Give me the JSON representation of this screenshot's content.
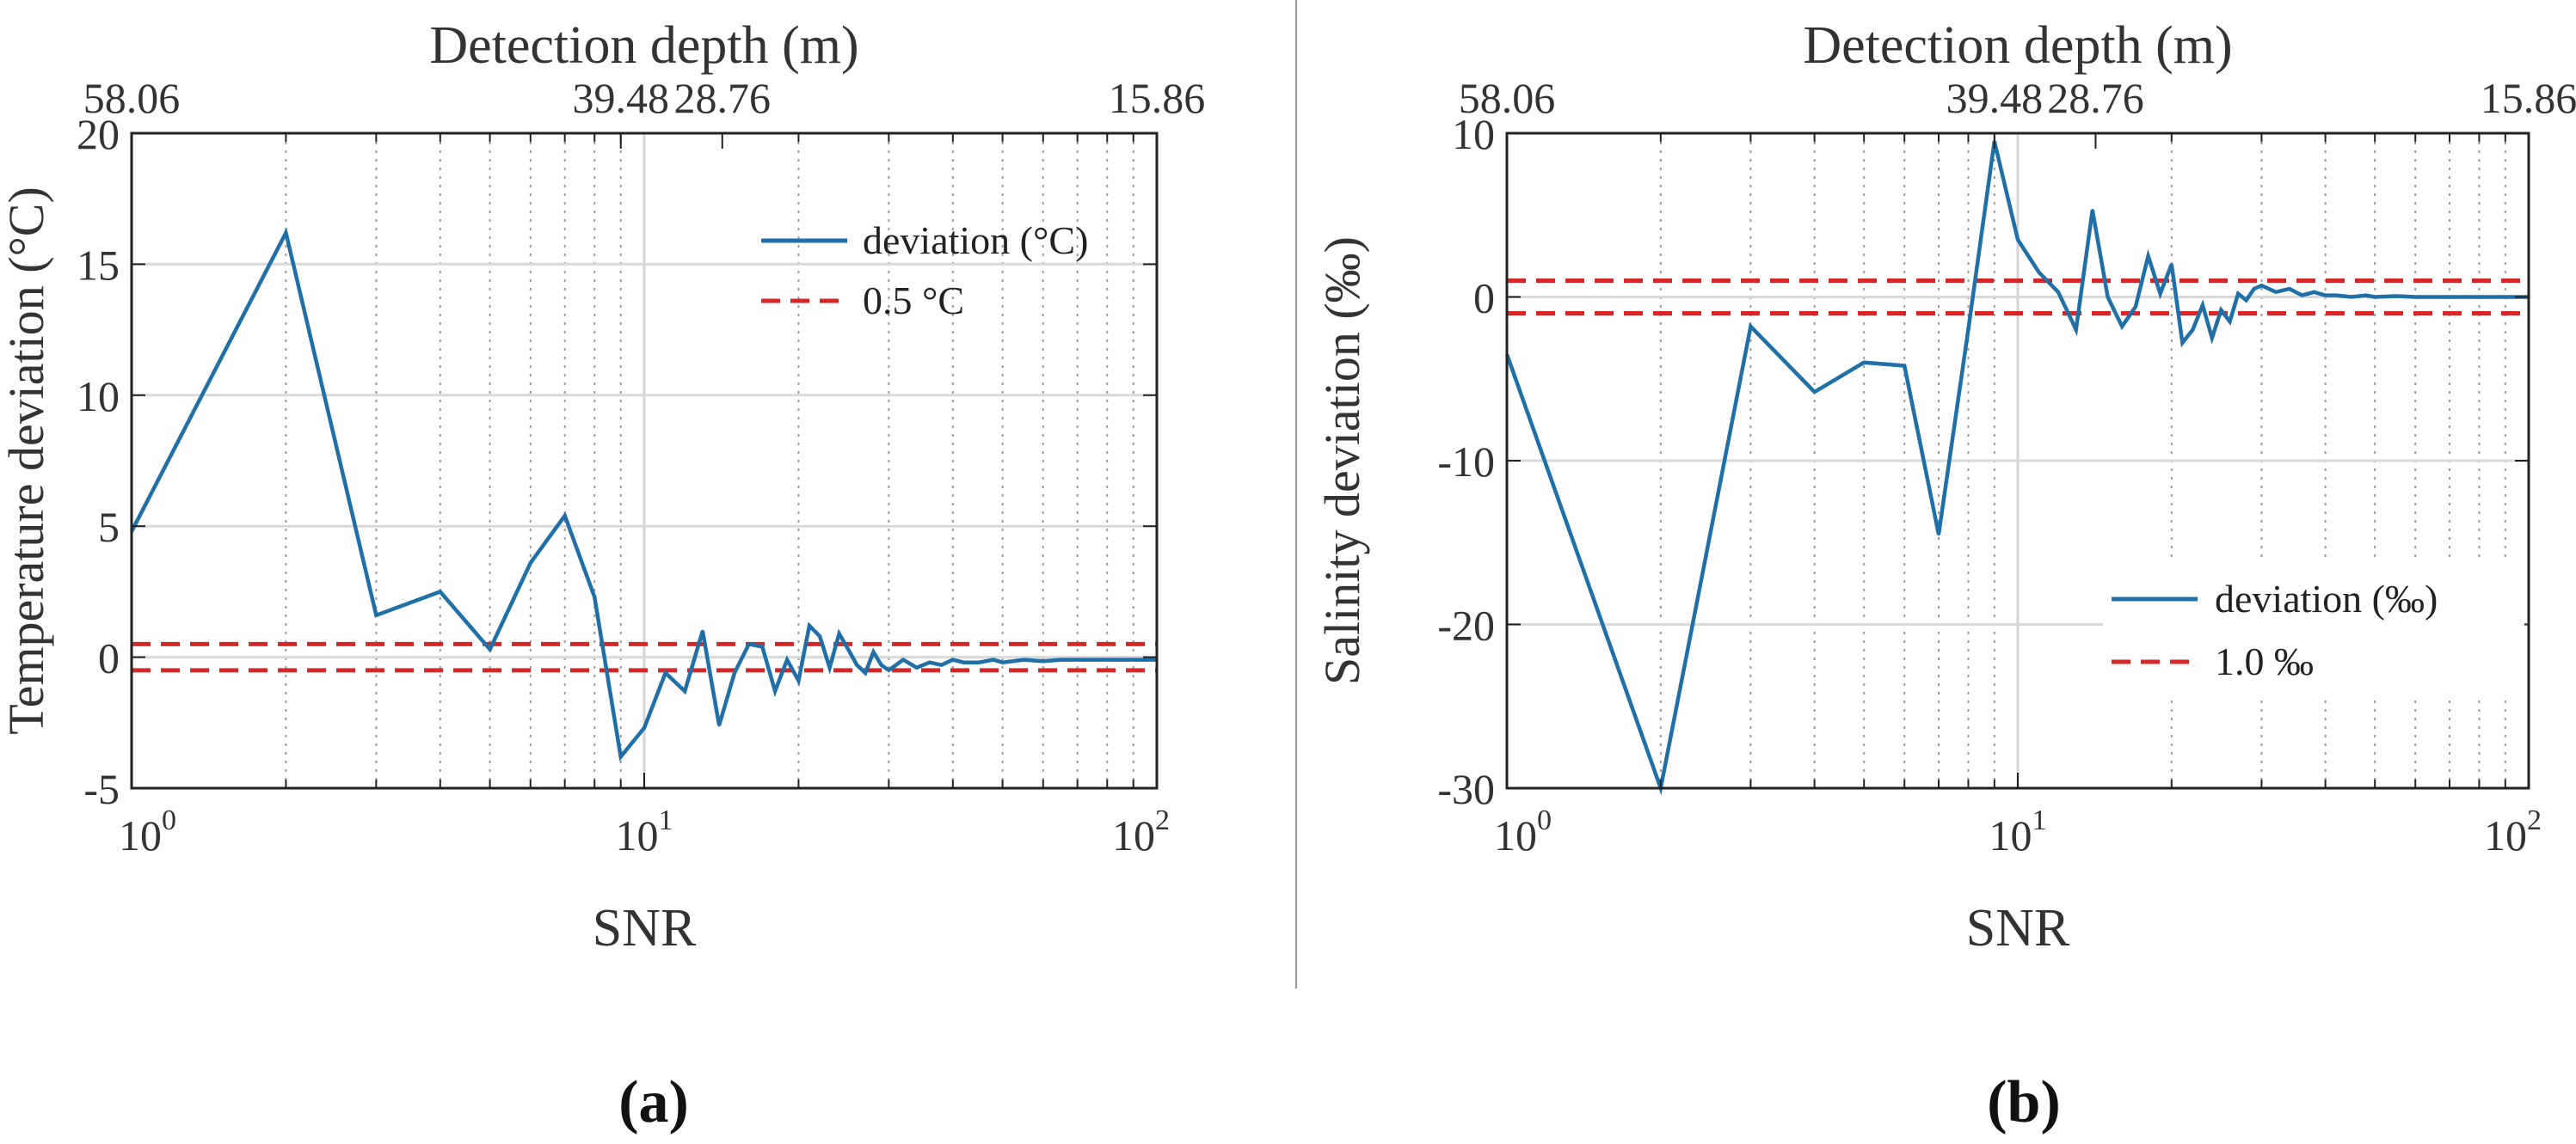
{
  "chart_data": [
    {
      "type": "line",
      "panel_label": "(a)",
      "xlabel": "SNR",
      "x2label": "Detection depth (m)",
      "ylabel": "Temperature deviation (°C)",
      "xscale": "log",
      "xlim": [
        1,
        100
      ],
      "ylim": [
        -5,
        20
      ],
      "x_ticks": [
        1,
        10,
        100
      ],
      "x_tick_labels": [
        [
          "10",
          "0"
        ],
        [
          "10",
          "1"
        ],
        [
          "10",
          "2"
        ]
      ],
      "y_ticks": [
        -5,
        0,
        5,
        10,
        15,
        20
      ],
      "y_tick_labels": [
        "-5",
        "0",
        "5",
        "10",
        "15",
        "20"
      ],
      "top_ticks": [
        1,
        9,
        14.2,
        100
      ],
      "top_tick_labels": [
        "58.06",
        "39.48",
        "28.76",
        "15.86"
      ],
      "grid": true,
      "legend_position": "top-right",
      "series": [
        {
          "name": "deviation (°C)",
          "style": "solid",
          "color": "#1f6fa8",
          "x": [
            1,
            2,
            3,
            4,
            5,
            6,
            7,
            8,
            9,
            10,
            11,
            12,
            13,
            14,
            15,
            16,
            17,
            18,
            19,
            20,
            21,
            22,
            23,
            24,
            25,
            26,
            27,
            28,
            29,
            30,
            32,
            34,
            36,
            38,
            40,
            42,
            45,
            48,
            50,
            55,
            60,
            65,
            70,
            75,
            80,
            90,
            100
          ],
          "y": [
            4.8,
            16.2,
            1.6,
            2.5,
            0.3,
            3.6,
            5.4,
            2.3,
            -3.8,
            -2.7,
            -0.6,
            -1.3,
            1.0,
            -2.6,
            -0.6,
            0.5,
            0.4,
            -1.3,
            -0.1,
            -0.9,
            1.2,
            0.8,
            -0.4,
            0.9,
            0.3,
            -0.3,
            -0.6,
            0.2,
            -0.3,
            -0.5,
            -0.1,
            -0.4,
            -0.2,
            -0.3,
            -0.1,
            -0.2,
            -0.2,
            -0.1,
            -0.2,
            -0.1,
            -0.15,
            -0.1,
            -0.1,
            -0.1,
            -0.1,
            -0.1,
            -0.1
          ]
        },
        {
          "name": "0.5 °C",
          "style": "dashed",
          "color": "#d62728",
          "threshold": 0.5,
          "mirror": true
        }
      ]
    },
    {
      "type": "line",
      "panel_label": "(b)",
      "xlabel": "SNR",
      "x2label": "Detection depth (m)",
      "ylabel": "Salinity deviation (‰)",
      "xscale": "log",
      "xlim": [
        1,
        100
      ],
      "ylim": [
        -30,
        10
      ],
      "x_ticks": [
        1,
        10,
        100
      ],
      "x_tick_labels": [
        [
          "10",
          "0"
        ],
        [
          "10",
          "1"
        ],
        [
          "10",
          "2"
        ]
      ],
      "y_ticks": [
        -30,
        -20,
        -10,
        0,
        10
      ],
      "y_tick_labels": [
        "-30",
        "-20",
        "-10",
        "0",
        "10"
      ],
      "top_ticks": [
        1,
        9,
        14.2,
        100
      ],
      "top_tick_labels": [
        "58.06",
        "39.48",
        "28.76",
        "15.86"
      ],
      "grid": true,
      "legend_position": "lower-right",
      "series": [
        {
          "name": "deviation (‰)",
          "style": "solid",
          "color": "#1f6fa8",
          "x": [
            1,
            2,
            3,
            4,
            5,
            6,
            7,
            8,
            9,
            10,
            11,
            12,
            13,
            14,
            15,
            16,
            17,
            18,
            19,
            20,
            21,
            22,
            23,
            24,
            25,
            26,
            27,
            28,
            29,
            30,
            32,
            34,
            36,
            38,
            40,
            42,
            45,
            48,
            50,
            55,
            60,
            65,
            70,
            75,
            80,
            90,
            100
          ],
          "y": [
            -3.5,
            -30,
            -1.8,
            -5.8,
            -4.0,
            -4.2,
            -14.5,
            -2.0,
            9.5,
            3.5,
            1.5,
            0.3,
            -2.0,
            5.3,
            0.0,
            -1.8,
            -0.6,
            2.5,
            0.2,
            2.0,
            -2.8,
            -2.0,
            -0.5,
            -2.5,
            -0.8,
            -1.5,
            0.2,
            -0.2,
            0.5,
            0.7,
            0.3,
            0.5,
            0.1,
            0.3,
            0.1,
            0.1,
            0.0,
            0.1,
            0.0,
            0.05,
            0.0,
            0.0,
            0.0,
            0.0,
            0.0,
            0.0,
            0.0
          ]
        },
        {
          "name": "1.0 ‰",
          "style": "dashed",
          "color": "#d62728",
          "threshold": 1.0,
          "mirror": true
        }
      ]
    }
  ]
}
